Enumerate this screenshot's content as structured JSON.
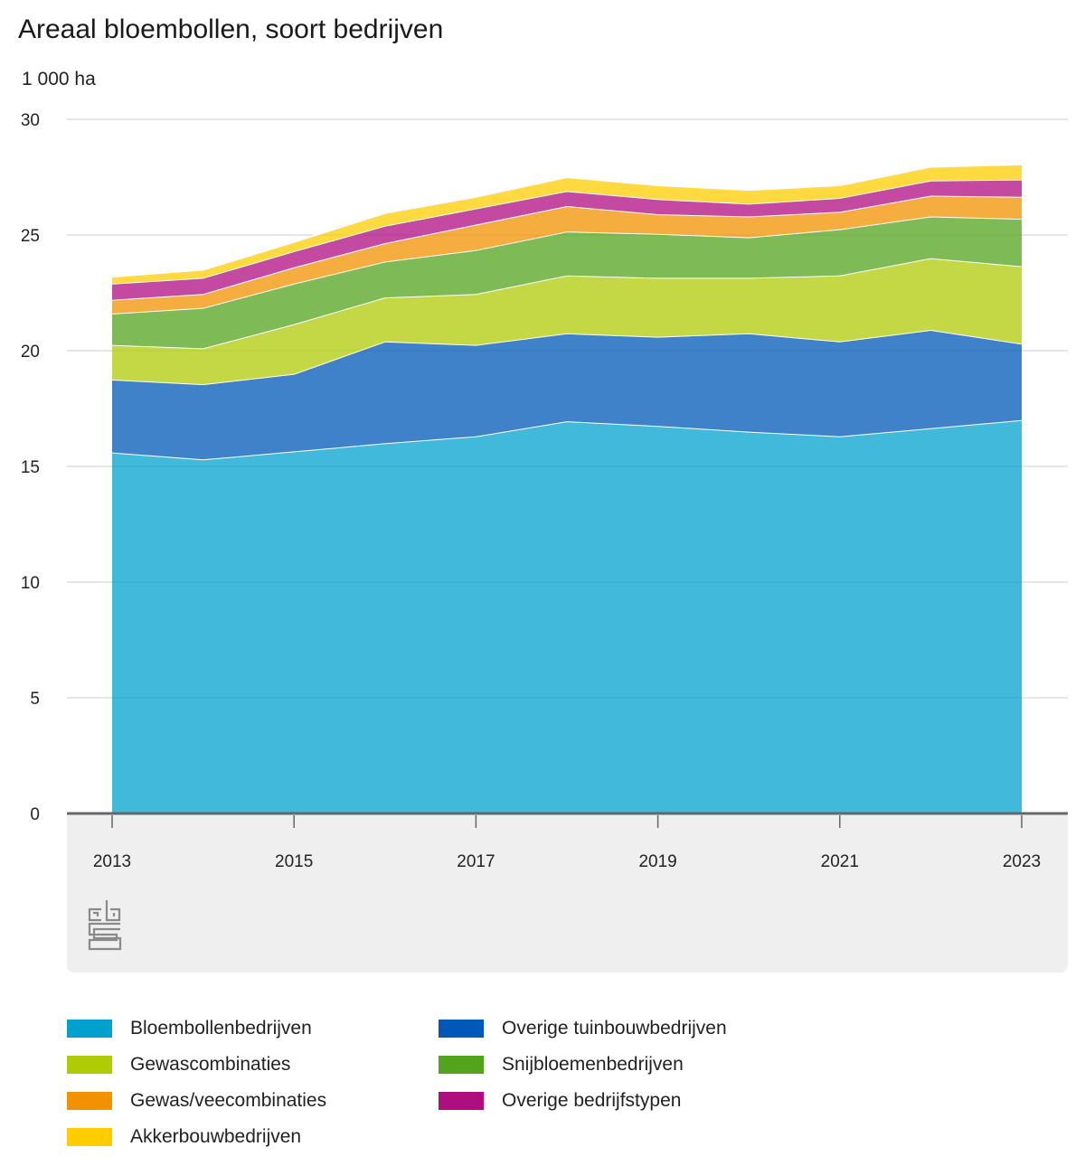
{
  "chart_data": {
    "type": "area",
    "stacked": true,
    "title": "Areaal bloembollen, soort bedrijven",
    "ylabel": "1 000 ha",
    "ylim": [
      0,
      30
    ],
    "yticks": [
      "0",
      "5",
      "10",
      "15",
      "20",
      "25",
      "30"
    ],
    "x": [
      2013,
      2014,
      2015,
      2016,
      2017,
      2018,
      2019,
      2020,
      2021,
      2022,
      2023
    ],
    "xticks": [
      "2013",
      "2015",
      "2017",
      "2019",
      "2021",
      "2023"
    ],
    "grid": true,
    "legend_position": "bottom",
    "series": [
      {
        "name": "Bloembollenbedrijven",
        "color": "#00a1cd",
        "values": [
          15.6,
          15.3,
          15.65,
          16.0,
          16.3,
          16.95,
          16.75,
          16.5,
          16.3,
          16.65,
          17.0
        ]
      },
      {
        "name": "Overige tuinbouwbedrijven",
        "color": "#0058b8",
        "values": [
          3.15,
          3.25,
          3.35,
          4.4,
          3.95,
          3.8,
          3.85,
          4.25,
          4.1,
          4.25,
          3.3
        ]
      },
      {
        "name": "Gewascombinaties",
        "color": "#afcb05",
        "values": [
          1.5,
          1.55,
          2.15,
          1.9,
          2.2,
          2.5,
          2.55,
          2.4,
          2.85,
          3.1,
          3.35
        ]
      },
      {
        "name": "Snijbloemenbedrijven",
        "color": "#53a31d",
        "values": [
          1.35,
          1.75,
          1.75,
          1.55,
          1.9,
          1.9,
          1.9,
          1.75,
          2.0,
          1.8,
          2.05
        ]
      },
      {
        "name": "Gewas/veecombinaties",
        "color": "#f39200",
        "values": [
          0.6,
          0.6,
          0.7,
          0.8,
          1.1,
          1.1,
          0.85,
          0.9,
          0.75,
          0.9,
          0.95
        ]
      },
      {
        "name": "Overige bedrijfstypen",
        "color": "#af0e80",
        "values": [
          0.7,
          0.7,
          0.7,
          0.75,
          0.7,
          0.65,
          0.65,
          0.55,
          0.6,
          0.65,
          0.75
        ]
      },
      {
        "name": "Akkerbouwbedrijven",
        "color": "#ffcc00",
        "values": [
          0.3,
          0.35,
          0.4,
          0.55,
          0.5,
          0.6,
          0.6,
          0.6,
          0.55,
          0.6,
          0.65
        ]
      }
    ]
  },
  "legend_order": [
    "Bloembollenbedrijven",
    "Overige tuinbouwbedrijven",
    "Gewascombinaties",
    "Snijbloemenbedrijven",
    "Gewas/veecombinaties",
    "Overige bedrijfstypen",
    "Akkerbouwbedrijven"
  ],
  "logo_icon": "cbs-logo-icon"
}
